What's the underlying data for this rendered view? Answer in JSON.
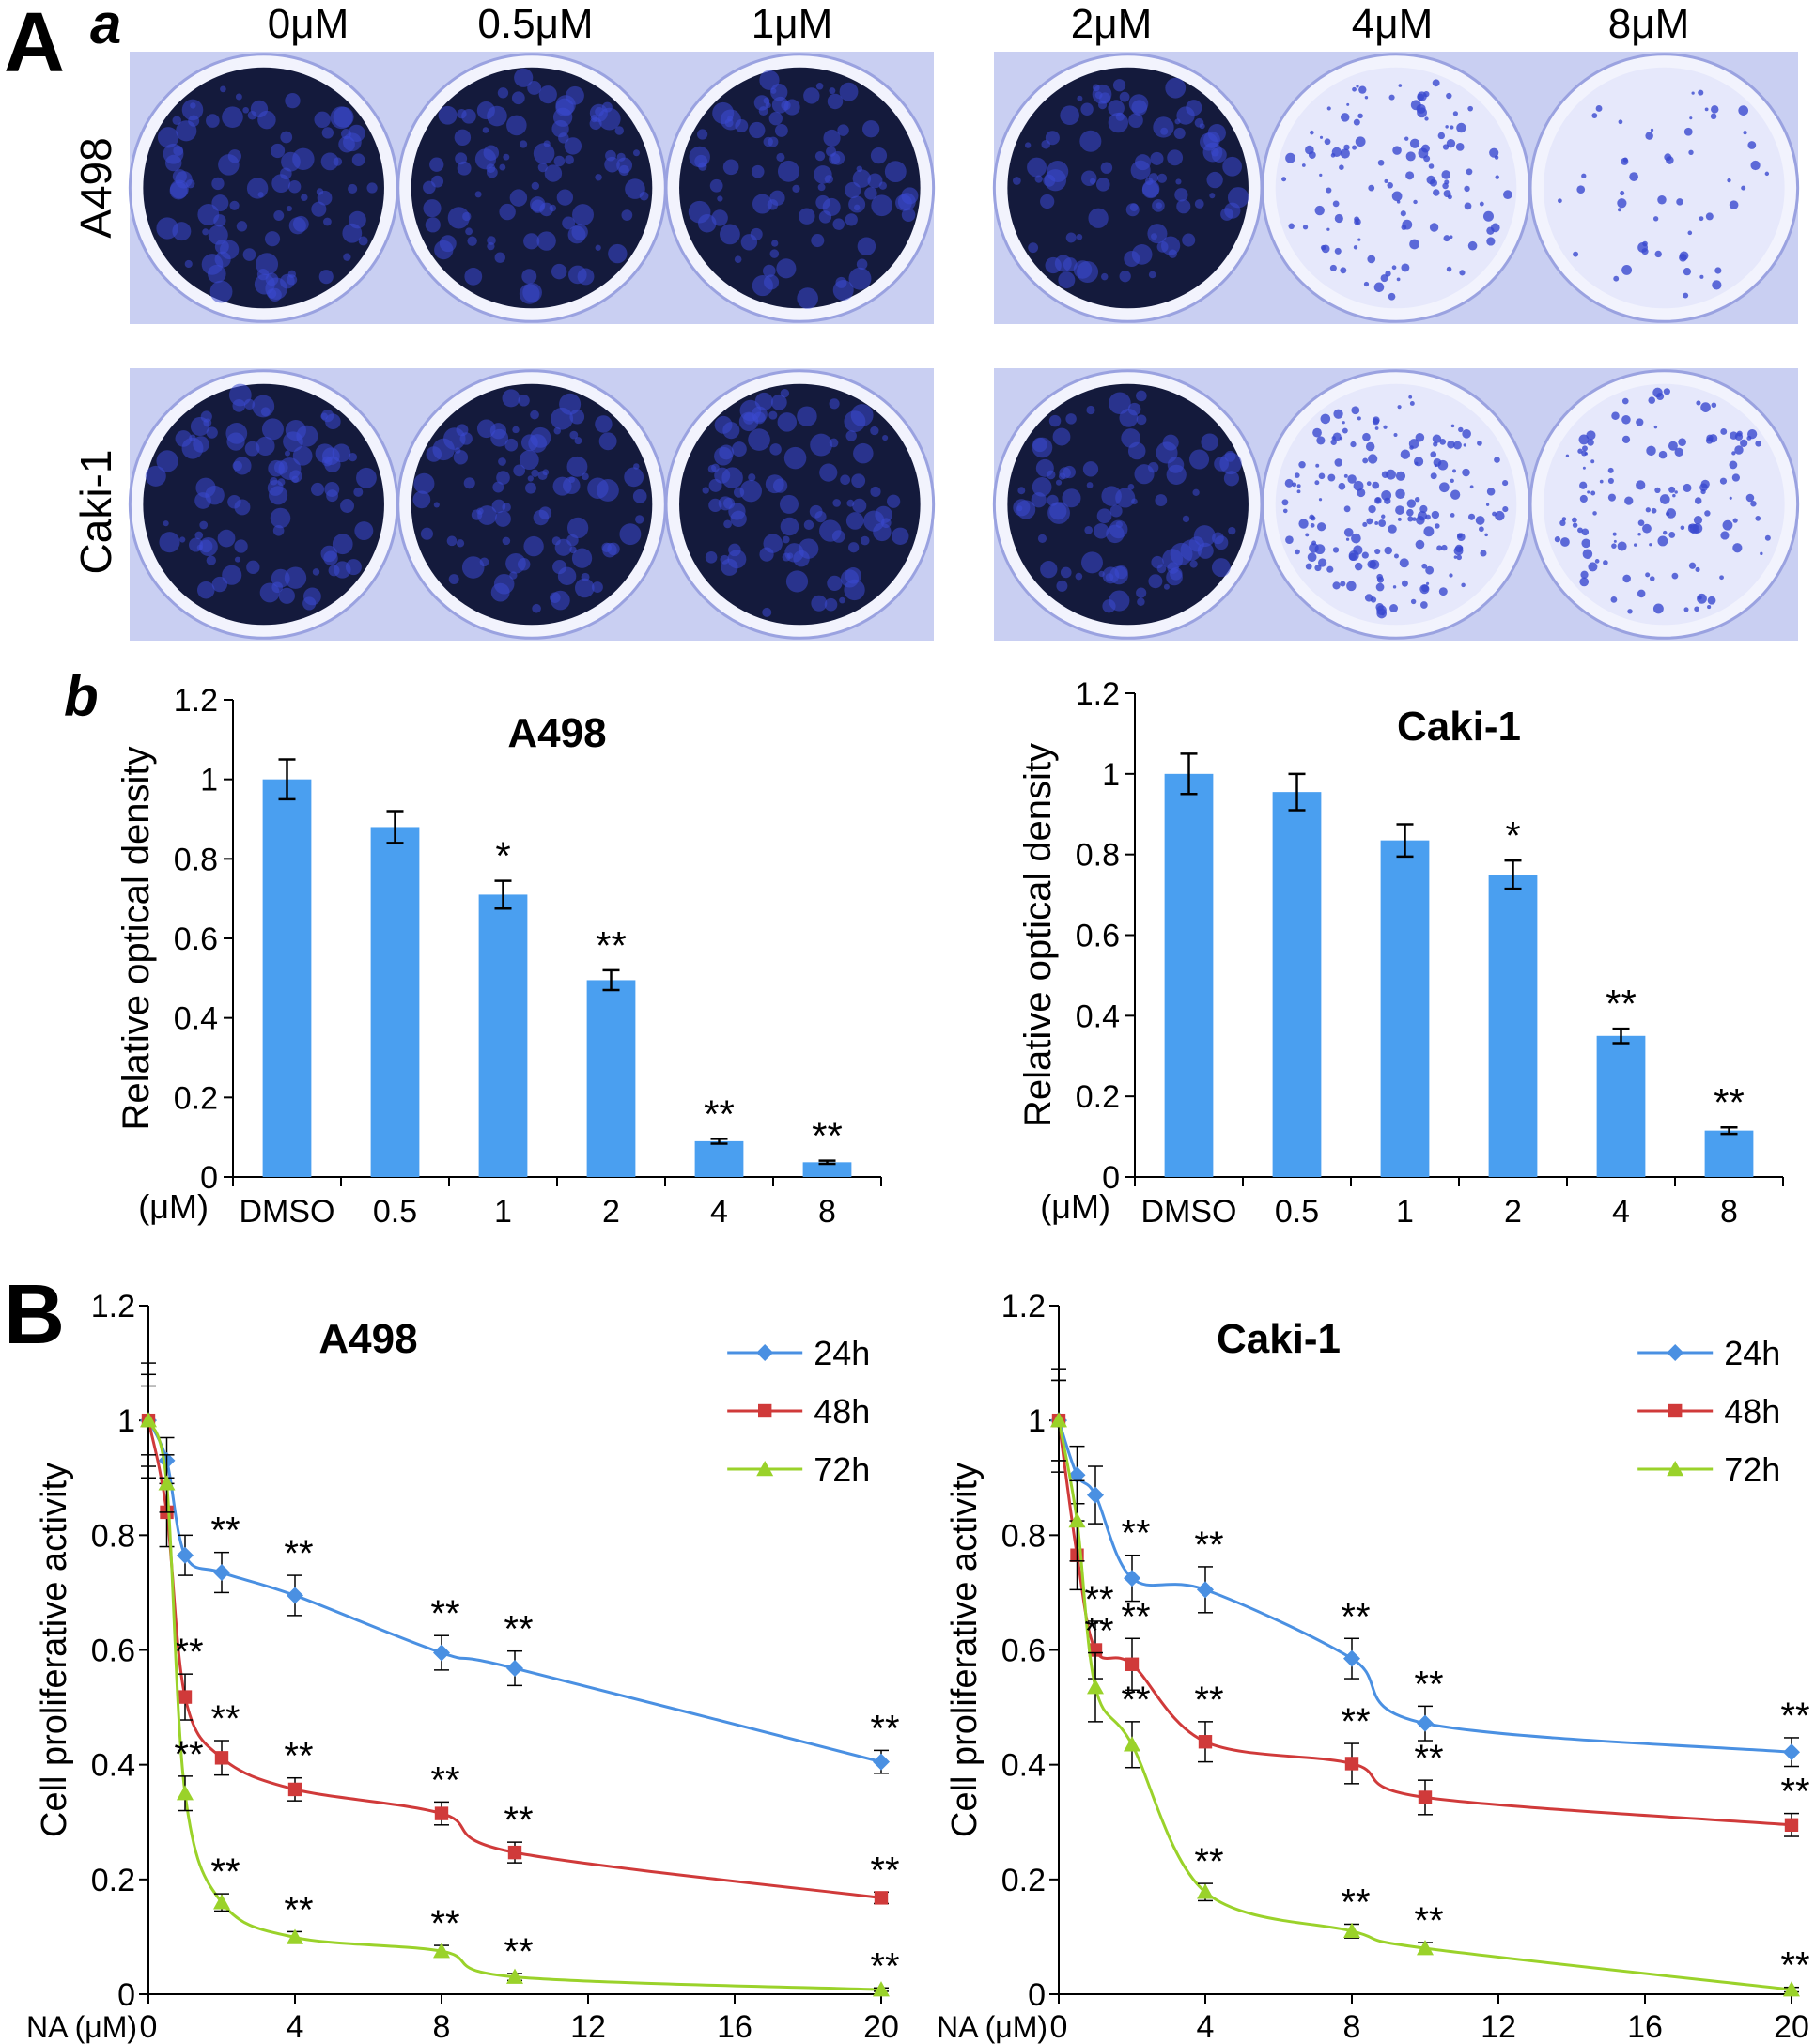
{
  "panelA": {
    "letter": "A",
    "sub_a": "a",
    "sub_b": "b",
    "doses": [
      "0μM",
      "0.5μM",
      "1μM",
      "2μM",
      "4μM",
      "8μM"
    ],
    "cell_lines": [
      "A498",
      "Caki-1"
    ],
    "plate_colors": {
      "plate": "#c9cff2",
      "stain_dark": "#141a3c",
      "stain": "#3a48d0",
      "light_well": "#e6e8fb"
    }
  },
  "panelB": {
    "letter": "B"
  },
  "colors": {
    "bar": "#4a9ff0",
    "line_24h": "#4a90e2",
    "line_48h": "#d03a3a",
    "line_72h": "#9ad22a",
    "axis": "#000000"
  },
  "chart_data": [
    {
      "type": "bar",
      "title": "A498",
      "ylabel": "Relative optical density",
      "xunit": "(μM)",
      "categories": [
        "DMSO",
        "0.5",
        "1",
        "2",
        "4",
        "8"
      ],
      "values": [
        1.0,
        0.88,
        0.71,
        0.495,
        0.09,
        0.037
      ],
      "errors": [
        0.05,
        0.04,
        0.035,
        0.025,
        0.006,
        0.004
      ],
      "significance": [
        "",
        "",
        "*",
        "**",
        "**",
        "**"
      ],
      "ylim": [
        0,
        1.2
      ],
      "yticks": [
        "0",
        "0.2",
        "0.4",
        "0.6",
        "0.8",
        "1",
        "1.2"
      ]
    },
    {
      "type": "bar",
      "title": "Caki-1",
      "ylabel": "Relative optical density",
      "xunit": "(μM)",
      "categories": [
        "DMSO",
        "0.5",
        "1",
        "2",
        "4",
        "8"
      ],
      "values": [
        1.0,
        0.955,
        0.835,
        0.75,
        0.35,
        0.115
      ],
      "errors": [
        0.05,
        0.045,
        0.04,
        0.035,
        0.018,
        0.008
      ],
      "significance": [
        "",
        "",
        "",
        "*",
        "**",
        "**"
      ],
      "ylim": [
        0,
        1.2
      ],
      "yticks": [
        "0",
        "0.2",
        "0.4",
        "0.6",
        "0.8",
        "1",
        "1.2"
      ]
    },
    {
      "type": "line",
      "title": "A498",
      "ylabel": "Cell proliferative activity",
      "xlabel": "NA (μM)",
      "xlim": [
        0,
        20
      ],
      "xticks": [
        "0",
        "4",
        "8",
        "12",
        "16",
        "20"
      ],
      "ylim": [
        0,
        1.2
      ],
      "yticks": [
        "0",
        "0.2",
        "0.4",
        "0.6",
        "0.8",
        "1",
        "1.2"
      ],
      "legend_position": "top-right",
      "x": [
        0,
        0.5,
        1,
        2,
        4,
        8,
        10,
        20
      ],
      "series": [
        {
          "name": "24h",
          "values": [
            1.0,
            0.93,
            0.765,
            0.735,
            0.695,
            0.595,
            0.568,
            0.405
          ],
          "errors": [
            0.08,
            0.04,
            0.035,
            0.035,
            0.035,
            0.03,
            0.03,
            0.02
          ],
          "significance": [
            "",
            "",
            "",
            "**",
            "**",
            "**",
            "**",
            "**"
          ]
        },
        {
          "name": "48h",
          "values": [
            1.0,
            0.84,
            0.518,
            0.412,
            0.357,
            0.315,
            0.247,
            0.168
          ],
          "errors": [
            0.1,
            0.06,
            0.04,
            0.03,
            0.02,
            0.02,
            0.018,
            0.01
          ],
          "significance": [
            "",
            "",
            "**",
            "**",
            "**",
            "**",
            "**",
            "**"
          ]
        },
        {
          "name": "72h",
          "values": [
            1.0,
            0.89,
            0.35,
            0.16,
            0.099,
            0.075,
            0.03,
            0.008
          ],
          "errors": [
            0.06,
            0.05,
            0.03,
            0.015,
            0.01,
            0.01,
            0.006,
            0.003
          ],
          "significance": [
            "",
            "",
            "**",
            "**",
            "**",
            "**",
            "**",
            "**"
          ]
        }
      ]
    },
    {
      "type": "line",
      "title": "Caki-1",
      "ylabel": "Cell proliferative activity",
      "xlabel": "NA (μM)",
      "xlim": [
        0,
        20
      ],
      "xticks": [
        "0",
        "4",
        "8",
        "12",
        "16",
        "20"
      ],
      "ylim": [
        0,
        1.2
      ],
      "yticks": [
        "0",
        "0.2",
        "0.4",
        "0.6",
        "0.8",
        "1",
        "1.2"
      ],
      "legend_position": "top-right",
      "x": [
        0,
        0.5,
        1,
        2,
        4,
        8,
        10,
        20
      ],
      "series": [
        {
          "name": "24h",
          "values": [
            1.0,
            0.905,
            0.87,
            0.725,
            0.705,
            0.585,
            0.472,
            0.422
          ],
          "errors": [
            0.09,
            0.05,
            0.05,
            0.04,
            0.04,
            0.035,
            0.03,
            0.025
          ],
          "significance": [
            "",
            "",
            "",
            "**",
            "**",
            "**",
            "**",
            "**"
          ]
        },
        {
          "name": "48h",
          "values": [
            1.0,
            0.765,
            0.6,
            0.575,
            0.44,
            0.402,
            0.343,
            0.295
          ],
          "errors": [
            0.07,
            0.06,
            0.05,
            0.045,
            0.035,
            0.035,
            0.03,
            0.02
          ],
          "significance": [
            "",
            "",
            "**",
            "**",
            "**",
            "**",
            "**",
            "**"
          ]
        },
        {
          "name": "72h",
          "values": [
            1.0,
            0.825,
            0.535,
            0.435,
            0.178,
            0.11,
            0.08,
            0.008
          ],
          "errors": [
            0.07,
            0.07,
            0.06,
            0.04,
            0.015,
            0.012,
            0.01,
            0.004
          ],
          "significance": [
            "",
            "",
            "**",
            "**",
            "**",
            "**",
            "**",
            "**"
          ]
        }
      ]
    }
  ]
}
